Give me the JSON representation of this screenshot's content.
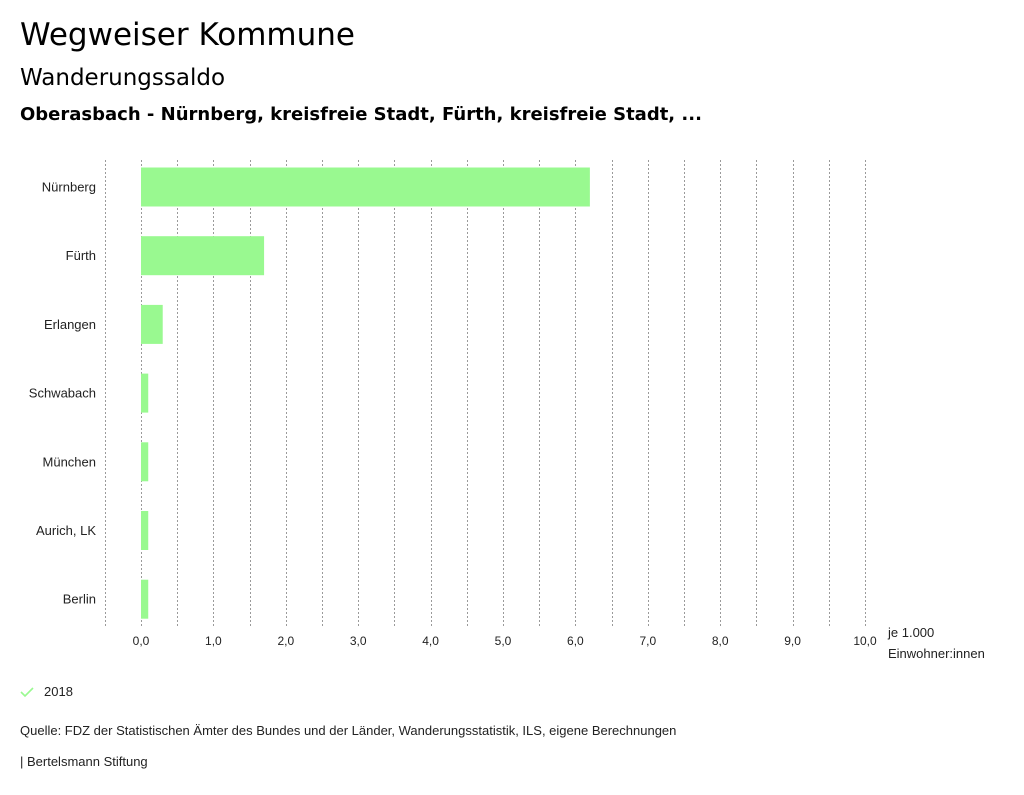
{
  "header": {
    "title": "Wegweiser Kommune",
    "subtitle": "Wanderungssaldo",
    "description": "Oberasbach - Nürnberg, kreisfreie Stadt, Fürth, kreisfreie Stadt, ..."
  },
  "chart_data": {
    "type": "bar",
    "orientation": "horizontal",
    "categories": [
      "Nürnberg",
      "Fürth",
      "Erlangen",
      "Schwabach",
      "München",
      "Aurich, LK",
      "Berlin"
    ],
    "series": [
      {
        "name": "2018",
        "values": [
          6.2,
          1.7,
          0.3,
          0.1,
          0.1,
          0.1,
          0.1
        ]
      }
    ],
    "xlim": [
      -0.5,
      10.0
    ],
    "xticks": [
      "0,0",
      "1,0",
      "2,0",
      "3,0",
      "4,0",
      "5,0",
      "6,0",
      "7,0",
      "8,0",
      "9,0",
      "10,0"
    ],
    "xlabel": "je 1.000 Einwohner:innen",
    "unit_line1": "je 1.000",
    "unit_line2": "Einwohner:innen",
    "grid": true,
    "legend_position": "bottom-left",
    "bar_color": "#99f990"
  },
  "legend": {
    "label": "2018"
  },
  "footer": {
    "source": "Quelle: FDZ der Statistischen Ämter des Bundes und der Länder, Wanderungsstatistik, ILS, eigene Berechnungen",
    "credit": "| Bertelsmann Stiftung"
  }
}
